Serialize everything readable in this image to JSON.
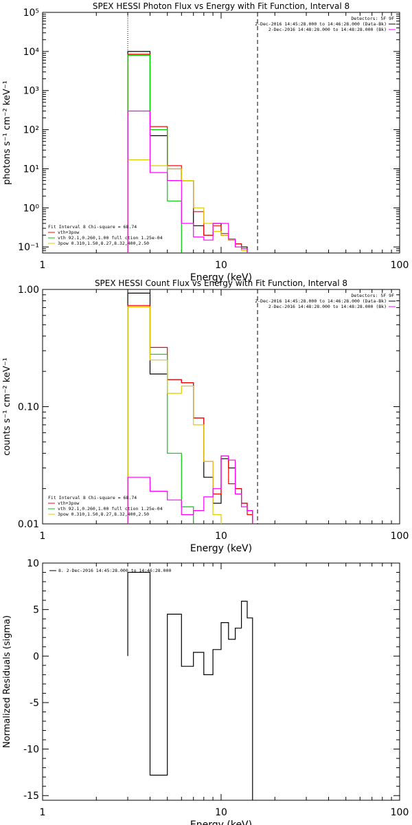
{
  "colors": {
    "data": "#000000",
    "total": "#ff0000",
    "thermal": "#00cc00",
    "powerlaw": "#ddcc00",
    "background": "#ff00ff"
  },
  "chart_data": [
    {
      "type": "line",
      "id": "photon",
      "title": "SPEX HESSI Photon Flux vs Energy with Fit Function, Interval 8",
      "xlabel": "Energy (keV)",
      "ylabel": "photons s⁻¹ cm⁻² keV⁻¹",
      "xscale": "log",
      "yscale": "log",
      "xlim": [
        1,
        100
      ],
      "ylim": [
        0.07,
        100000
      ],
      "x_ticks": [
        {
          "v": 1,
          "label": "1"
        },
        {
          "v": 10,
          "label": "10"
        },
        {
          "v": 100,
          "label": "100"
        }
      ],
      "y_ticks": [
        {
          "v": 0.1,
          "label": "10⁻¹"
        },
        {
          "v": 1,
          "label": "10⁰"
        },
        {
          "v": 10,
          "label": "10¹"
        },
        {
          "v": 100,
          "label": "10²"
        },
        {
          "v": 1000,
          "label": "10³"
        },
        {
          "v": 10000,
          "label": "10⁴"
        },
        {
          "v": 100000,
          "label": "10⁵"
        }
      ],
      "vlines": [
        {
          "x": 3.0,
          "style": "dotted"
        },
        {
          "x": 16.0,
          "style": "dashed"
        }
      ],
      "bin_edges": [
        3.0,
        4.0,
        5.0,
        6.0,
        7.0,
        8.0,
        9.0,
        10.0,
        11.0,
        12.0,
        13.0,
        14.0,
        15.0,
        16.0
      ],
      "series": [
        {
          "key": "data",
          "values": [
            10000,
            70,
            10,
            5,
            0.35,
            0.2,
            0.4,
            0.2,
            0.15,
            0.12,
            0.1,
            null,
            null
          ]
        },
        {
          "key": "total",
          "values": [
            8500,
            120,
            12,
            5,
            0.8,
            0.2,
            0.35,
            0.22,
            0.15,
            0.12,
            0.09,
            null,
            null
          ]
        },
        {
          "key": "thermal",
          "values": [
            8000,
            100,
            1.5,
            null,
            null,
            null,
            null,
            null,
            null,
            null,
            null,
            null,
            null
          ]
        },
        {
          "key": "powerlaw",
          "values": [
            17,
            12,
            10,
            5,
            1.0,
            0.4,
            0.25,
            0.2,
            0.15,
            0.1,
            0.08,
            null,
            null
          ]
        },
        {
          "key": "background",
          "values": [
            300,
            8,
            5,
            0.4,
            0.18,
            0.15,
            0.4,
            0.4,
            0.16,
            0.1,
            0.09,
            null,
            null
          ]
        }
      ],
      "fit_box": {
        "header": "Fit Interval  8    Chi-square = 68.74",
        "lines": [
          {
            "key": "total",
            "text": "vth+3pow"
          },
          {
            "key": "thermal",
            "text": "vth 92.1,0.260,1.00  full ction 1.25e-04"
          },
          {
            "key": "powerlaw",
            "text": "3pow 0.310,1.50,8.27,8.32,400,2.50"
          }
        ]
      },
      "legend": {
        "header": "Detectors: 5F 9F",
        "entries": [
          {
            "key": "data",
            "text": "2-Dec-2016 14:45:28.000 to 14:46:28.000 (Data-Bk)"
          },
          {
            "key": "background",
            "text": "2-Dec-2016 14:48:28.000 to 14:48:28.000 (Bk)"
          }
        ]
      }
    },
    {
      "type": "line",
      "id": "count",
      "title": "SPEX HESSI Count Flux vs Energy with Fit Function, Interval 8",
      "xlabel": "Energy (keV)",
      "ylabel": "counts s⁻¹ cm⁻² keV⁻¹",
      "xscale": "log",
      "yscale": "log",
      "xlim": [
        1,
        100
      ],
      "ylim": [
        0.01,
        1.0
      ],
      "x_ticks": [
        {
          "v": 1,
          "label": "1"
        },
        {
          "v": 10,
          "label": "10"
        },
        {
          "v": 100,
          "label": "100"
        }
      ],
      "y_ticks": [
        {
          "v": 0.01,
          "label": "0.01"
        },
        {
          "v": 0.1,
          "label": "0.10"
        },
        {
          "v": 1.0,
          "label": "1.00"
        }
      ],
      "vlines": [
        {
          "x": 3.0,
          "style": "dotted"
        },
        {
          "x": 16.0,
          "style": "dashed"
        }
      ],
      "bin_edges": [
        3.0,
        4.0,
        5.0,
        6.0,
        7.0,
        8.0,
        9.0,
        10.0,
        11.0,
        12.0,
        13.0,
        14.0,
        15.0,
        16.0
      ],
      "series": [
        {
          "key": "data",
          "values": [
            0.93,
            0.19,
            0.17,
            0.16,
            0.08,
            0.025,
            0.015,
            0.036,
            0.03,
            0.02,
            0.015,
            0.013,
            null
          ]
        },
        {
          "key": "total",
          "values": [
            0.73,
            0.32,
            0.17,
            0.16,
            0.08,
            0.034,
            0.018,
            0.038,
            0.022,
            0.02,
            0.015,
            0.012,
            null
          ]
        },
        {
          "key": "thermal",
          "values": [
            0.71,
            0.28,
            0.04,
            0.014,
            null,
            null,
            null,
            null,
            null,
            null,
            null,
            null,
            null
          ]
        },
        {
          "key": "powerlaw",
          "values": [
            0.71,
            0.25,
            0.13,
            0.15,
            0.07,
            0.034,
            0.012,
            null,
            null,
            null,
            null,
            null,
            null
          ]
        },
        {
          "key": "background",
          "values": [
            0.025,
            0.019,
            0.016,
            0.012,
            0.013,
            0.017,
            0.02,
            0.038,
            0.035,
            0.018,
            0.014,
            0.013,
            null
          ]
        }
      ],
      "fit_box": {
        "header": "Fit Interval  8    Chi-square = 68.74",
        "lines": [
          {
            "key": "total",
            "text": "vth+3pow"
          },
          {
            "key": "thermal",
            "text": "vth 92.1,0.260,1.00  full ction 1.25e-04"
          },
          {
            "key": "powerlaw",
            "text": "3pow 0.310,1.50,8.27,8.32,400,2.50"
          }
        ]
      },
      "legend": {
        "header": "Detectors: 5F 9F",
        "entries": [
          {
            "key": "data",
            "text": "2-Dec-2016 14:45:28.000 to 14:46:28.000 (Data-Bk)"
          },
          {
            "key": "background",
            "text": "2-Dec-2016 14:48:28.000 to 14:48:28.000 (Bk)"
          }
        ]
      }
    },
    {
      "type": "line",
      "id": "residual",
      "title": "",
      "xlabel": "Energy (keV)",
      "ylabel": "Normalized Residuals (sigma)",
      "xscale": "log",
      "yscale": "linear",
      "xlim": [
        1,
        100
      ],
      "ylim": [
        -15.5,
        10
      ],
      "x_ticks": [
        {
          "v": 1,
          "label": "1"
        },
        {
          "v": 10,
          "label": "10"
        },
        {
          "v": 100,
          "label": "100"
        }
      ],
      "y_ticks": [
        {
          "v": -15,
          "label": "-15"
        },
        {
          "v": -10,
          "label": "-10"
        },
        {
          "v": -5,
          "label": "-5"
        },
        {
          "v": 0,
          "label": "0"
        },
        {
          "v": 5,
          "label": "5"
        },
        {
          "v": 10,
          "label": "10"
        }
      ],
      "vlines": [],
      "bin_edges": [
        3.0,
        4.0,
        5.0,
        6.0,
        7.0,
        8.0,
        9.0,
        10.0,
        11.0,
        12.0,
        13.0,
        14.0,
        15.0,
        16.0
      ],
      "series": [
        {
          "key": "data",
          "values": [
            9.0,
            -12.8,
            4.5,
            -1.1,
            0.4,
            -2.0,
            0.7,
            3.6,
            1.8,
            3.0,
            5.9,
            4.1,
            null
          ]
        }
      ],
      "legend": {
        "header": "",
        "entries": [
          {
            "key": "data",
            "text": "8.  2-Dec-2016 14:45:28.000 to 14:46:28.000"
          }
        ]
      }
    }
  ]
}
